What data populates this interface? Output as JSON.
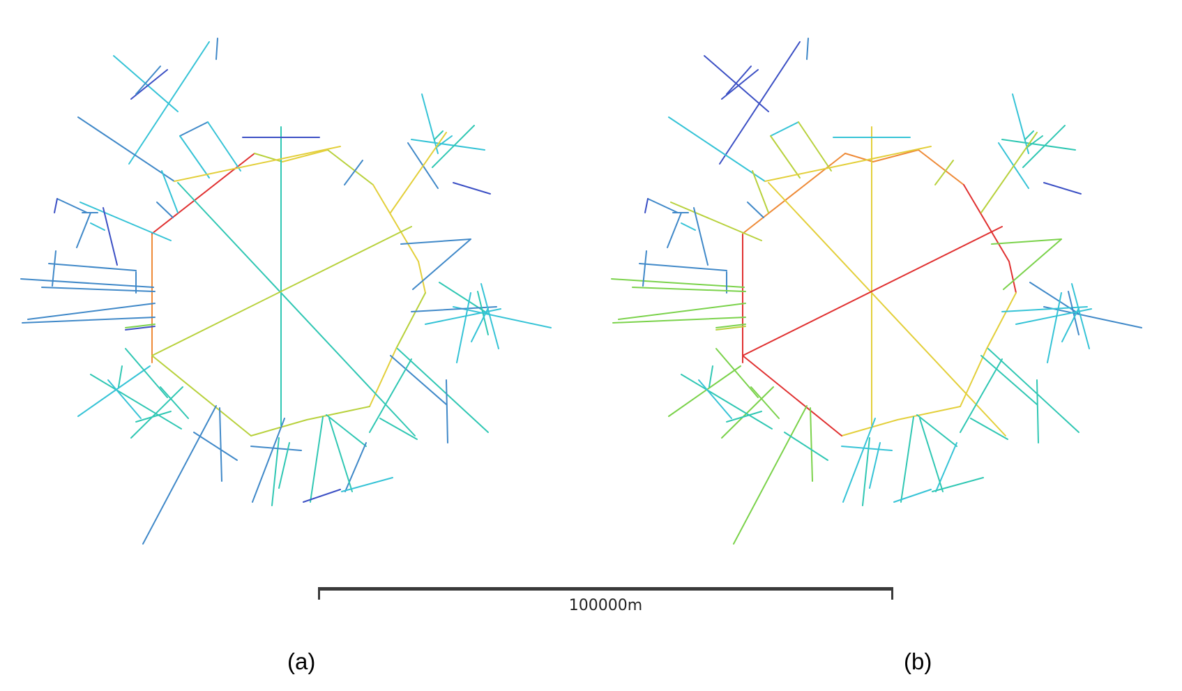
{
  "figure": {
    "scale_label": "100000m",
    "panels": [
      {
        "caption": "(a)",
        "color_scheme": "a"
      },
      {
        "caption": "(b)",
        "color_scheme": "b"
      }
    ]
  },
  "colors": {
    "blue": "#3b4fc4",
    "steel": "#3f88c8",
    "cyan": "#35c3d6",
    "teal": "#2fc7b3",
    "green": "#7ad24a",
    "lime": "#b8d13c",
    "yellow": "#e3cf3a",
    "orange": "#ee8a37",
    "red": "#e03030"
  }
}
